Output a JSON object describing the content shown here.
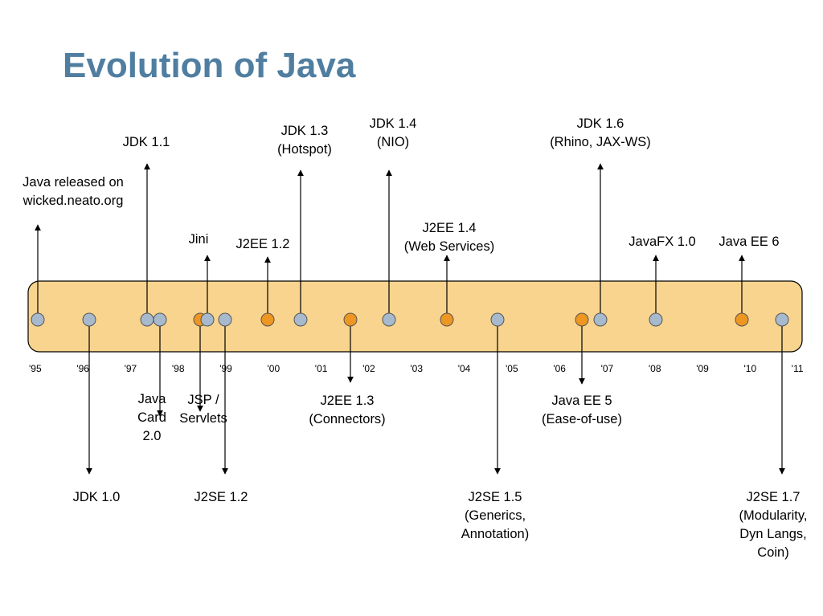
{
  "title": "Evolution of Java",
  "colors": {
    "title": "#4f7ea1",
    "band_fill": "#f8d48e",
    "band_stroke": "#000000",
    "platform_dot": "#a7b9cc",
    "enterprise_dot": "#ee9622"
  },
  "years": [
    "'95",
    "'96",
    "'97",
    "'98",
    "'99",
    "'00",
    "'01",
    "'02",
    "'03",
    "'04",
    "'05",
    "'06",
    "'07",
    "'08",
    "'09",
    "'10",
    "'11"
  ],
  "events": [
    {
      "id": "java-released",
      "lines": [
        "Java released on",
        "wicked.neato.org"
      ],
      "kind": "platform",
      "dir": "up"
    },
    {
      "id": "jdk-1-0",
      "lines": [
        "JDK 1.0"
      ],
      "kind": "platform",
      "dir": "down"
    },
    {
      "id": "jdk-1-1",
      "lines": [
        "JDK 1.1"
      ],
      "kind": "platform",
      "dir": "up"
    },
    {
      "id": "java-card-2-0",
      "lines": [
        "Java",
        "Card",
        "2.0"
      ],
      "kind": "platform",
      "dir": "down"
    },
    {
      "id": "jsp-servlets",
      "lines": [
        "JSP /",
        "Servlets"
      ],
      "kind": "enterprise",
      "dir": "down"
    },
    {
      "id": "jini",
      "lines": [
        "Jini"
      ],
      "kind": "platform",
      "dir": "up"
    },
    {
      "id": "j2se-1-2",
      "lines": [
        "J2SE 1.2"
      ],
      "kind": "platform",
      "dir": "down"
    },
    {
      "id": "j2ee-1-2",
      "lines": [
        "J2EE 1.2"
      ],
      "kind": "enterprise",
      "dir": "up"
    },
    {
      "id": "jdk-1-3",
      "lines": [
        "JDK 1.3",
        "(Hotspot)"
      ],
      "kind": "platform",
      "dir": "up"
    },
    {
      "id": "j2ee-1-3",
      "lines": [
        "J2EE 1.3",
        "(Connectors)"
      ],
      "kind": "enterprise",
      "dir": "down"
    },
    {
      "id": "jdk-1-4",
      "lines": [
        "JDK 1.4",
        "(NIO)"
      ],
      "kind": "platform",
      "dir": "up"
    },
    {
      "id": "j2ee-1-4",
      "lines": [
        "J2EE 1.4",
        "(Web Services)"
      ],
      "kind": "enterprise",
      "dir": "up"
    },
    {
      "id": "j2se-1-5",
      "lines": [
        "J2SE 1.5",
        "(Generics,",
        "Annotation)"
      ],
      "kind": "platform",
      "dir": "down"
    },
    {
      "id": "java-ee-5",
      "lines": [
        "Java EE 5",
        "(Ease-of-use)"
      ],
      "kind": "enterprise",
      "dir": "down"
    },
    {
      "id": "jdk-1-6",
      "lines": [
        "JDK 1.6",
        "(Rhino, JAX-WS)"
      ],
      "kind": "platform",
      "dir": "up"
    },
    {
      "id": "javafx-1-0",
      "lines": [
        "JavaFX 1.0"
      ],
      "kind": "platform",
      "dir": "up"
    },
    {
      "id": "java-ee-6",
      "lines": [
        "Java EE 6"
      ],
      "kind": "enterprise",
      "dir": "up"
    },
    {
      "id": "j2se-1-7",
      "lines": [
        "J2SE 1.7",
        "(Modularity,",
        "Dyn Langs,",
        "Coin)"
      ],
      "kind": "platform",
      "dir": "down"
    }
  ]
}
